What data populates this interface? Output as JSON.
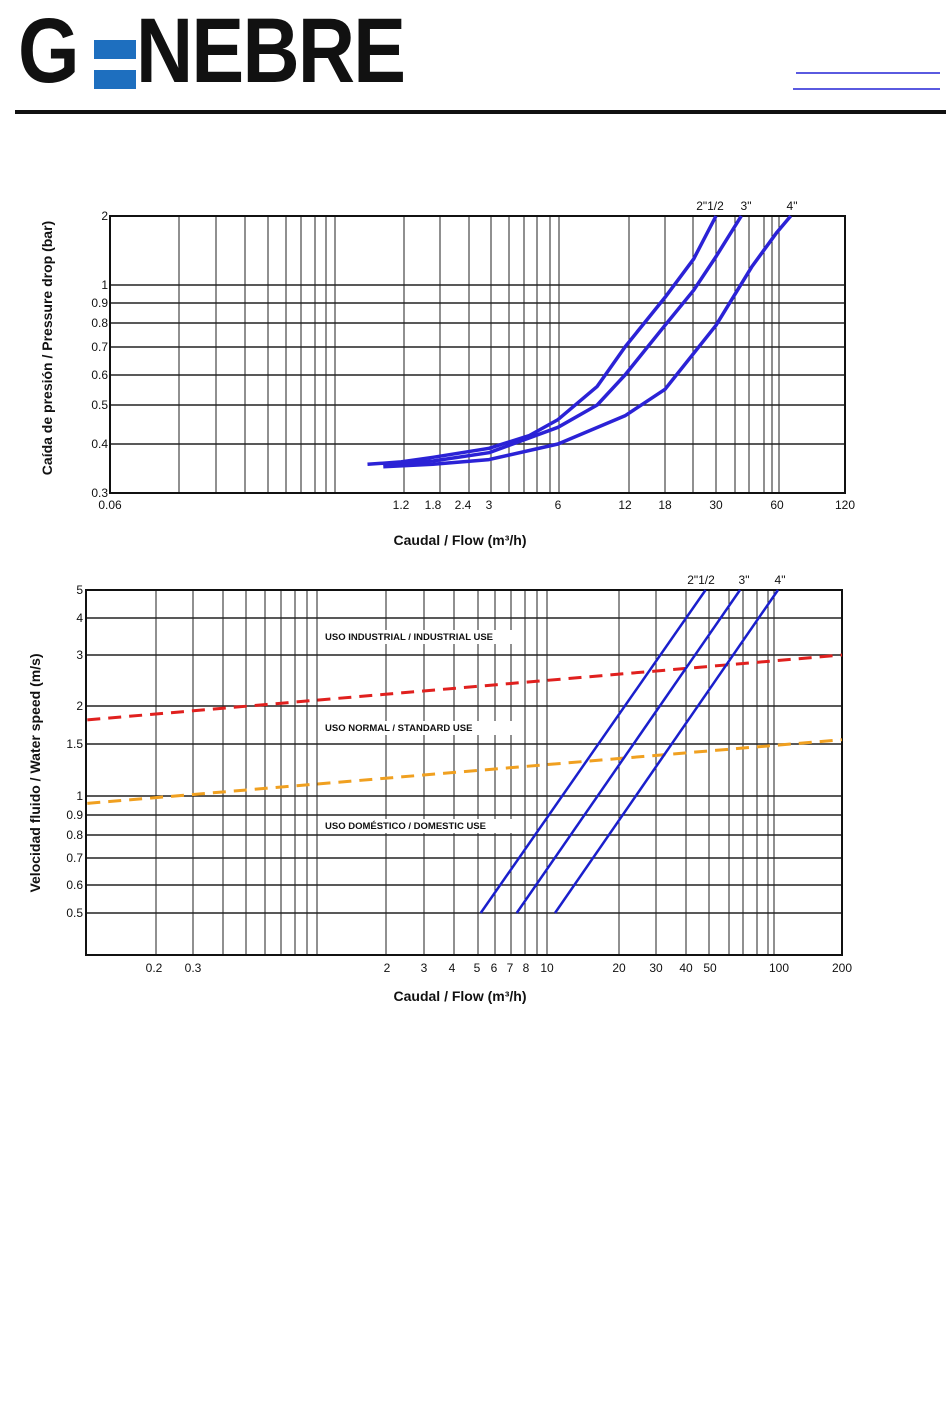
{
  "header": {
    "logo_text": "GENEBRE"
  },
  "chart_data": [
    {
      "type": "line",
      "title": "",
      "xlabel": "Caudal / Flow (m³/h)",
      "ylabel": "Caída de presión / Pressure drop (bar)",
      "xscale": "log",
      "yscale": "log",
      "xlim": [
        0.06,
        120
      ],
      "ylim": [
        0.3,
        2
      ],
      "grid": true,
      "x_ticks": [
        0.06,
        1.2,
        1.8,
        2.4,
        3,
        6,
        12,
        18,
        30,
        60,
        120
      ],
      "x_tick_labels": [
        "0.06",
        "1.2",
        "1.8",
        "2.4",
        "3",
        "6",
        "12",
        "18",
        "30",
        "60",
        "120"
      ],
      "y_ticks": [
        2,
        1,
        0.9,
        0.8,
        0.7,
        0.6,
        0.5,
        0.4,
        0.3
      ],
      "y_tick_labels": [
        "2",
        "1",
        "0.9",
        "0.8",
        "0.7",
        "0.6",
        "0.5",
        "0.4",
        "0.3"
      ],
      "series": [
        {
          "name": "2\"1/2",
          "color": "#2b22d6",
          "points": [
            [
              0.85,
              0.355
            ],
            [
              1.2,
              0.36
            ],
            [
              1.8,
              0.37
            ],
            [
              3,
              0.39
            ],
            [
              4.5,
              0.42
            ],
            [
              6,
              0.46
            ],
            [
              9,
              0.56
            ],
            [
              12,
              0.7
            ],
            [
              18,
              0.93
            ],
            [
              24,
              1.3
            ],
            [
              30,
              2.0
            ]
          ]
        },
        {
          "name": "3\"",
          "color": "#2b22d6",
          "points": [
            [
              1.0,
              0.355
            ],
            [
              1.8,
              0.362
            ],
            [
              3,
              0.38
            ],
            [
              6,
              0.44
            ],
            [
              9,
              0.5
            ],
            [
              12,
              0.6
            ],
            [
              18,
              0.79
            ],
            [
              24,
              0.97
            ],
            [
              30,
              1.33
            ],
            [
              40,
              2.0
            ]
          ]
        },
        {
          "name": "4\"",
          "color": "#2b22d6",
          "points": [
            [
              1.0,
              0.35
            ],
            [
              1.8,
              0.355
            ],
            [
              3,
              0.365
            ],
            [
              6,
              0.4
            ],
            [
              12,
              0.47
            ],
            [
              18,
              0.55
            ],
            [
              30,
              0.79
            ],
            [
              45,
              1.2
            ],
            [
              60,
              1.7
            ],
            [
              69,
              2.0
            ]
          ]
        }
      ]
    },
    {
      "type": "line",
      "title": "",
      "xlabel": "Caudal / Flow (m³/h)",
      "ylabel": "Velocidad fluido / Water speed (m/s)",
      "xscale": "log",
      "yscale": "log",
      "xlim": [
        0.1,
        200
      ],
      "ylim": [
        0.37,
        5
      ],
      "grid": true,
      "x_ticks": [
        0.2,
        0.3,
        2,
        3,
        4,
        5,
        6,
        7,
        8,
        10,
        20,
        30,
        40,
        50,
        100,
        200
      ],
      "x_tick_labels": [
        "0.2",
        "0.3",
        "2",
        "3",
        "4",
        "5",
        "6",
        "7",
        "8",
        "10",
        "20",
        "30",
        "40",
        "50",
        "100",
        "200"
      ],
      "y_ticks": [
        5,
        4,
        3,
        2,
        1.5,
        1,
        0.9,
        0.8,
        0.7,
        0.6,
        0.5
      ],
      "y_tick_labels": [
        "5",
        "4",
        "3",
        "2",
        "1.5",
        "1",
        "0.9",
        "0.8",
        "0.7",
        "0.6",
        "0.5"
      ],
      "series": [
        {
          "name": "2\"1/2",
          "color": "#1a1fcc",
          "points": [
            [
              5.2,
              0.5
            ],
            [
              48,
              5
            ]
          ]
        },
        {
          "name": "3\"",
          "color": "#1a1fcc",
          "points": [
            [
              7.4,
              0.5
            ],
            [
              67.6,
              5
            ]
          ]
        },
        {
          "name": "4\"",
          "color": "#1a1fcc",
          "points": [
            [
              10.8,
              0.5
            ],
            [
              99,
              5
            ]
          ]
        }
      ],
      "reference_lines": [
        {
          "name": "industrial-limit",
          "color": "#e0201e",
          "style": "dashed",
          "points": [
            [
              0.1,
              1.8
            ],
            [
              200,
              3.0
            ]
          ]
        },
        {
          "name": "standard-limit",
          "color": "#f0a020",
          "style": "dashed",
          "points": [
            [
              0.1,
              0.96
            ],
            [
              200,
              1.55
            ]
          ]
        }
      ],
      "annotations": [
        "USO INDUSTRIAL / INDUSTRIAL USE",
        "USO NORMAL / STANDARD USE",
        "USO DOMÉSTICO / DOMESTIC USE"
      ]
    }
  ]
}
